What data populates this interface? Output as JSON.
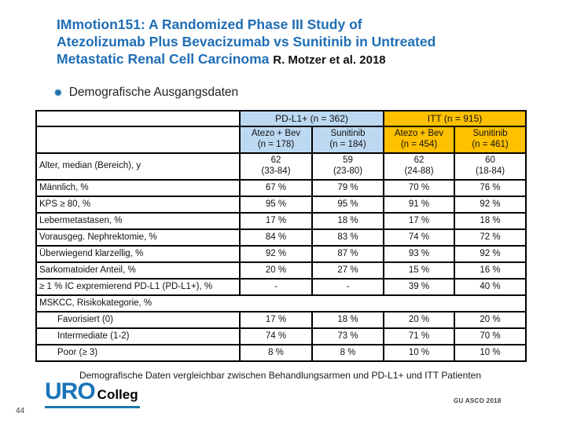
{
  "slide": {
    "title": {
      "line1": "IMmotion151: A Randomized Phase III Study of",
      "line2": "Atezolizumab Plus Bevacizumab vs Sunitinib in Untreated",
      "line3": "Metastatic Renal Cell Carcinoma",
      "citation": "R. Motzer et al. 2018"
    },
    "bullet": {
      "icon": "twelve-pointed-star-bullet",
      "label": "Demografische Ausgangsdaten"
    },
    "footer_note": "Demografische Daten vergleichbar zwischen Behandlungsarmen und PD-L1+ und ITT Patienten",
    "logo": {
      "primary": "URO",
      "secondary": "Colleg"
    },
    "conference": "GU ASCO 2018",
    "page_number": "44"
  },
  "colors": {
    "title_blue": "#1F6DB5",
    "header_blue_bg": "#BDD9F2",
    "header_amber_bg": "#FFC000",
    "logo_blue": "#1B74B8",
    "underline_teal": "#1A7BA8",
    "bullet_star_blue": "#1B6FAF"
  },
  "table": {
    "group_headers": [
      {
        "label": "PD-L1+ (n = 362)"
      },
      {
        "label": "ITT (n = 915)"
      }
    ],
    "column_headers": [
      {
        "label": "Atezo + Bev\n(n = 178)",
        "group": "PD-L1+"
      },
      {
        "label": "Sunitinib\n(n = 184)",
        "group": "PD-L1+"
      },
      {
        "label": "Atezo + Bev\n(n = 454)",
        "group": "ITT"
      },
      {
        "label": "Sunitinib\n(n = 461)",
        "group": "ITT"
      }
    ],
    "rows": [
      {
        "type": "data",
        "tall": true,
        "label": "Alter, median (Bereich), y",
        "values": [
          "62\n(33-84)",
          "59\n(23-80)",
          "62\n(24-88)",
          "60\n(18-84)"
        ]
      },
      {
        "type": "data",
        "label": "Männlich, %",
        "values": [
          "67 %",
          "79 %",
          "70 %",
          "76 %"
        ]
      },
      {
        "type": "data",
        "label": "KPS ≥ 80, %",
        "values": [
          "95 %",
          "95 %",
          "91 %",
          "92 %"
        ]
      },
      {
        "type": "data",
        "label": "Lebermetastasen, %",
        "values": [
          "17 %",
          "18 %",
          "17 %",
          "18 %"
        ]
      },
      {
        "type": "data",
        "label": "Vorausgeg. Nephrektomie, %",
        "values": [
          "84 %",
          "83 %",
          "74 %",
          "72 %"
        ]
      },
      {
        "type": "data",
        "label": "Überwiegend klarzellig, %",
        "values": [
          "92 %",
          "87 %",
          "93 %",
          "92 %"
        ]
      },
      {
        "type": "data",
        "label": "Sarkomatoider Anteil, %",
        "values": [
          "20 %",
          "27 %",
          "15 %",
          "16 %"
        ]
      },
      {
        "type": "data",
        "label": "≥ 1 % IC expremierend PD-L1 (PD-L1+), %",
        "values": [
          "-",
          "-",
          "39 %",
          "40 %"
        ]
      },
      {
        "type": "section",
        "label": "MSKCC, Risikokategorie, %"
      },
      {
        "type": "data",
        "indent": true,
        "label": "Favorisiert (0)",
        "values": [
          "17 %",
          "18 %",
          "20 %",
          "20 %"
        ]
      },
      {
        "type": "data",
        "indent": true,
        "label": "Intermediate (1-2)",
        "values": [
          "74 %",
          "73 %",
          "71 %",
          "70 %"
        ]
      },
      {
        "type": "data",
        "indent": true,
        "label": "Poor (≥ 3)",
        "values": [
          "8 %",
          "8 %",
          "10 %",
          "10 %"
        ]
      }
    ]
  }
}
